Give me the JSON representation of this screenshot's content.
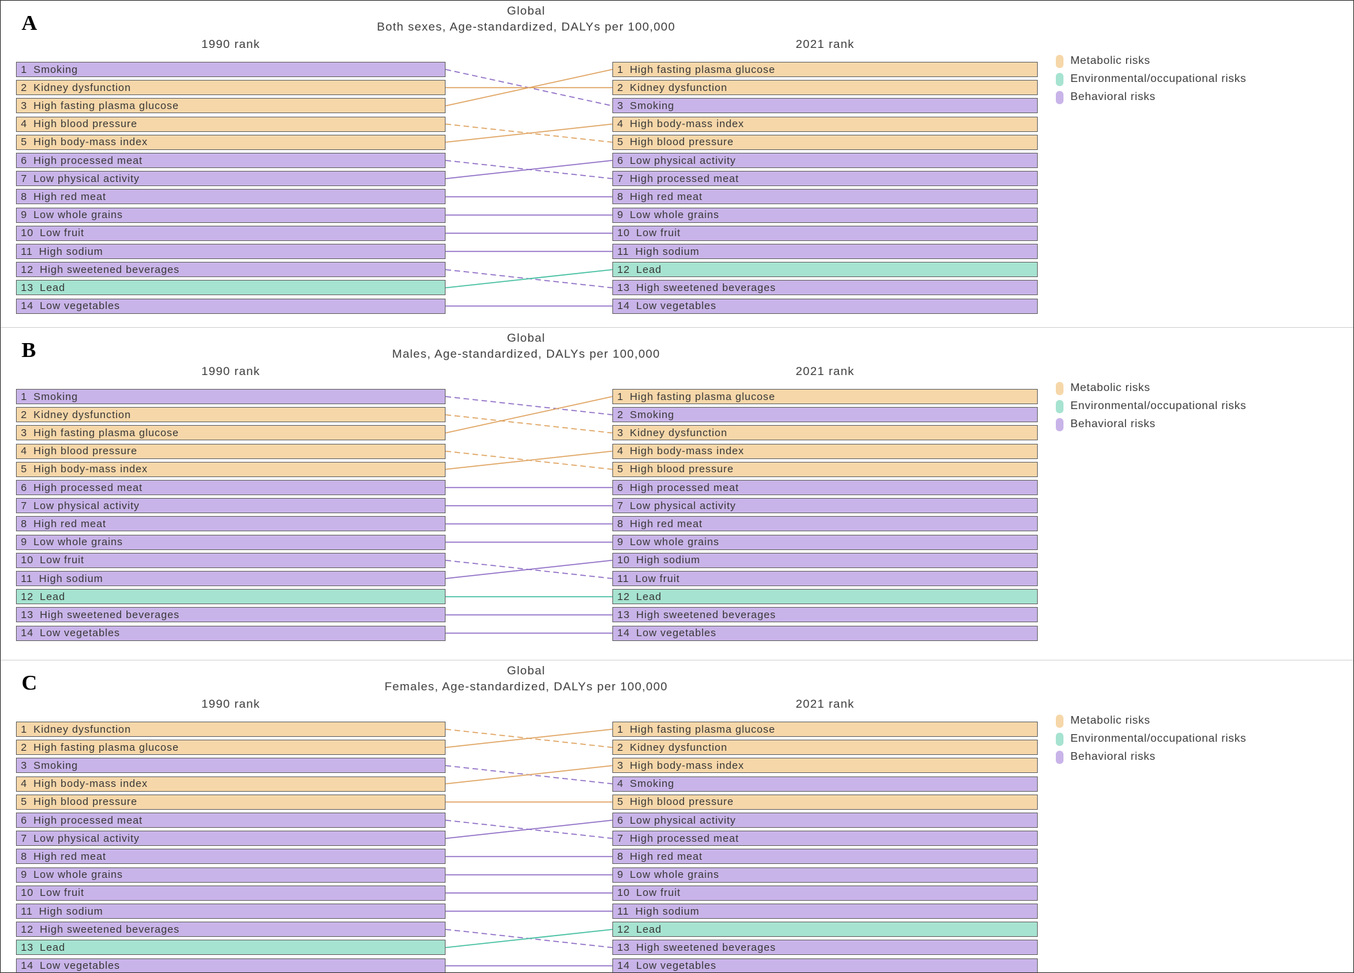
{
  "figure": {
    "background": "#ffffff",
    "box_border_color": "#6a6a6a",
    "legend": {
      "items": [
        {
          "label": "Metabolic risks",
          "key": "metabolic"
        },
        {
          "label": "Environmental/occupational risks",
          "key": "environmental"
        },
        {
          "label": "Behavioral risks",
          "key": "behavioral"
        }
      ]
    },
    "categories": {
      "metabolic": {
        "fill": "#F6D7A9",
        "line": "#DFA360"
      },
      "environmental": {
        "fill": "#A6E3D0",
        "line": "#43BFA0"
      },
      "behavioral": {
        "fill": "#C9B4E9",
        "line": "#8F6EC6"
      }
    },
    "line_style_note": "solid = rank improved or unchanged, dashed = rank worsened"
  },
  "chart_data": [
    {
      "type": "table",
      "panel_label": "A",
      "title": "Global",
      "subtitle": "Both sexes, Age-standardized, DALYs per 100,000",
      "columns": [
        "1990 rank",
        "2021 rank"
      ],
      "rows_1990": [
        {
          "rank": 1,
          "risk": "Smoking",
          "category": "behavioral"
        },
        {
          "rank": 2,
          "risk": "Kidney dysfunction",
          "category": "metabolic"
        },
        {
          "rank": 3,
          "risk": "High fasting plasma glucose",
          "category": "metabolic"
        },
        {
          "rank": 4,
          "risk": "High blood pressure",
          "category": "metabolic"
        },
        {
          "rank": 5,
          "risk": "High body-mass index",
          "category": "metabolic"
        },
        {
          "rank": 6,
          "risk": "High processed meat",
          "category": "behavioral"
        },
        {
          "rank": 7,
          "risk": "Low physical activity",
          "category": "behavioral"
        },
        {
          "rank": 8,
          "risk": "High red meat",
          "category": "behavioral"
        },
        {
          "rank": 9,
          "risk": "Low whole grains",
          "category": "behavioral"
        },
        {
          "rank": 10,
          "risk": "Low fruit",
          "category": "behavioral"
        },
        {
          "rank": 11,
          "risk": "High sodium",
          "category": "behavioral"
        },
        {
          "rank": 12,
          "risk": "High sweetened beverages",
          "category": "behavioral"
        },
        {
          "rank": 13,
          "risk": "Lead",
          "category": "environmental"
        },
        {
          "rank": 14,
          "risk": "Low vegetables",
          "category": "behavioral"
        }
      ],
      "rows_2021": [
        {
          "rank": 1,
          "risk": "High fasting plasma glucose",
          "category": "metabolic"
        },
        {
          "rank": 2,
          "risk": "Kidney dysfunction",
          "category": "metabolic"
        },
        {
          "rank": 3,
          "risk": "Smoking",
          "category": "behavioral"
        },
        {
          "rank": 4,
          "risk": "High body-mass index",
          "category": "metabolic"
        },
        {
          "rank": 5,
          "risk": "High blood pressure",
          "category": "metabolic"
        },
        {
          "rank": 6,
          "risk": "Low physical activity",
          "category": "behavioral"
        },
        {
          "rank": 7,
          "risk": "High processed meat",
          "category": "behavioral"
        },
        {
          "rank": 8,
          "risk": "High red meat",
          "category": "behavioral"
        },
        {
          "rank": 9,
          "risk": "Low whole grains",
          "category": "behavioral"
        },
        {
          "rank": 10,
          "risk": "Low fruit",
          "category": "behavioral"
        },
        {
          "rank": 11,
          "risk": "High sodium",
          "category": "behavioral"
        },
        {
          "rank": 12,
          "risk": "Lead",
          "category": "environmental"
        },
        {
          "rank": 13,
          "risk": "High sweetened beverages",
          "category": "behavioral"
        },
        {
          "rank": 14,
          "risk": "Low vegetables",
          "category": "behavioral"
        }
      ]
    },
    {
      "type": "table",
      "panel_label": "B",
      "title": "Global",
      "subtitle": "Males, Age-standardized, DALYs per 100,000",
      "columns": [
        "1990 rank",
        "2021 rank"
      ],
      "rows_1990": [
        {
          "rank": 1,
          "risk": "Smoking",
          "category": "behavioral"
        },
        {
          "rank": 2,
          "risk": "Kidney dysfunction",
          "category": "metabolic"
        },
        {
          "rank": 3,
          "risk": "High fasting plasma glucose",
          "category": "metabolic"
        },
        {
          "rank": 4,
          "risk": "High blood pressure",
          "category": "metabolic"
        },
        {
          "rank": 5,
          "risk": "High body-mass index",
          "category": "metabolic"
        },
        {
          "rank": 6,
          "risk": "High processed meat",
          "category": "behavioral"
        },
        {
          "rank": 7,
          "risk": "Low physical activity",
          "category": "behavioral"
        },
        {
          "rank": 8,
          "risk": "High red meat",
          "category": "behavioral"
        },
        {
          "rank": 9,
          "risk": "Low whole grains",
          "category": "behavioral"
        },
        {
          "rank": 10,
          "risk": "Low fruit",
          "category": "behavioral"
        },
        {
          "rank": 11,
          "risk": "High sodium",
          "category": "behavioral"
        },
        {
          "rank": 12,
          "risk": "Lead",
          "category": "environmental"
        },
        {
          "rank": 13,
          "risk": "High sweetened beverages",
          "category": "behavioral"
        },
        {
          "rank": 14,
          "risk": "Low vegetables",
          "category": "behavioral"
        }
      ],
      "rows_2021": [
        {
          "rank": 1,
          "risk": "High fasting plasma glucose",
          "category": "metabolic"
        },
        {
          "rank": 2,
          "risk": "Smoking",
          "category": "behavioral"
        },
        {
          "rank": 3,
          "risk": "Kidney dysfunction",
          "category": "metabolic"
        },
        {
          "rank": 4,
          "risk": "High body-mass index",
          "category": "metabolic"
        },
        {
          "rank": 5,
          "risk": "High blood pressure",
          "category": "metabolic"
        },
        {
          "rank": 6,
          "risk": "High processed meat",
          "category": "behavioral"
        },
        {
          "rank": 7,
          "risk": "Low physical activity",
          "category": "behavioral"
        },
        {
          "rank": 8,
          "risk": "High red meat",
          "category": "behavioral"
        },
        {
          "rank": 9,
          "risk": "Low whole grains",
          "category": "behavioral"
        },
        {
          "rank": 10,
          "risk": "High sodium",
          "category": "behavioral"
        },
        {
          "rank": 11,
          "risk": "Low fruit",
          "category": "behavioral"
        },
        {
          "rank": 12,
          "risk": "Lead",
          "category": "environmental"
        },
        {
          "rank": 13,
          "risk": "High sweetened beverages",
          "category": "behavioral"
        },
        {
          "rank": 14,
          "risk": "Low vegetables",
          "category": "behavioral"
        }
      ]
    },
    {
      "type": "table",
      "panel_label": "C",
      "title": "Global",
      "subtitle": "Females, Age-standardized, DALYs per 100,000",
      "columns": [
        "1990 rank",
        "2021 rank"
      ],
      "rows_1990": [
        {
          "rank": 1,
          "risk": "Kidney dysfunction",
          "category": "metabolic"
        },
        {
          "rank": 2,
          "risk": "High fasting plasma glucose",
          "category": "metabolic"
        },
        {
          "rank": 3,
          "risk": "Smoking",
          "category": "behavioral"
        },
        {
          "rank": 4,
          "risk": "High body-mass index",
          "category": "metabolic"
        },
        {
          "rank": 5,
          "risk": "High blood pressure",
          "category": "metabolic"
        },
        {
          "rank": 6,
          "risk": "High processed meat",
          "category": "behavioral"
        },
        {
          "rank": 7,
          "risk": "Low physical activity",
          "category": "behavioral"
        },
        {
          "rank": 8,
          "risk": "High red meat",
          "category": "behavioral"
        },
        {
          "rank": 9,
          "risk": "Low whole grains",
          "category": "behavioral"
        },
        {
          "rank": 10,
          "risk": "Low fruit",
          "category": "behavioral"
        },
        {
          "rank": 11,
          "risk": "High sodium",
          "category": "behavioral"
        },
        {
          "rank": 12,
          "risk": "High sweetened beverages",
          "category": "behavioral"
        },
        {
          "rank": 13,
          "risk": "Lead",
          "category": "environmental"
        },
        {
          "rank": 14,
          "risk": "Low vegetables",
          "category": "behavioral"
        }
      ],
      "rows_2021": [
        {
          "rank": 1,
          "risk": "High fasting plasma glucose",
          "category": "metabolic"
        },
        {
          "rank": 2,
          "risk": "Kidney dysfunction",
          "category": "metabolic"
        },
        {
          "rank": 3,
          "risk": "High body-mass index",
          "category": "metabolic"
        },
        {
          "rank": 4,
          "risk": "Smoking",
          "category": "behavioral"
        },
        {
          "rank": 5,
          "risk": "High blood pressure",
          "category": "metabolic"
        },
        {
          "rank": 6,
          "risk": "Low physical activity",
          "category": "behavioral"
        },
        {
          "rank": 7,
          "risk": "High processed meat",
          "category": "behavioral"
        },
        {
          "rank": 8,
          "risk": "High red meat",
          "category": "behavioral"
        },
        {
          "rank": 9,
          "risk": "Low whole grains",
          "category": "behavioral"
        },
        {
          "rank": 10,
          "risk": "Low fruit",
          "category": "behavioral"
        },
        {
          "rank": 11,
          "risk": "High sodium",
          "category": "behavioral"
        },
        {
          "rank": 12,
          "risk": "Lead",
          "category": "environmental"
        },
        {
          "rank": 13,
          "risk": "High sweetened beverages",
          "category": "behavioral"
        },
        {
          "rank": 14,
          "risk": "Low vegetables",
          "category": "behavioral"
        }
      ]
    }
  ]
}
